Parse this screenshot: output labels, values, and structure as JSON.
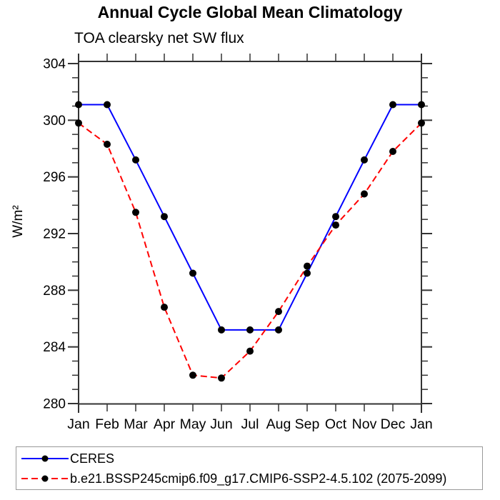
{
  "header": {
    "title": "Annual Cycle Global Mean Climatology",
    "subtitle": "TOA clearsky net SW flux"
  },
  "legend": {
    "entries": [
      {
        "label": "CERES",
        "color": "#0000ff",
        "style": "solid",
        "marker_color": "#000000"
      },
      {
        "label": "b.e21.BSSP245cmip6.f09_g17.CMIP6-SSP2-4.5.102 (2075-2099)",
        "color": "#ff0000",
        "style": "dashed",
        "marker_color": "#000000"
      }
    ]
  },
  "chart_data": {
    "type": "line",
    "title": "Annual Cycle Global Mean Climatology",
    "subtitle": "TOA clearsky net SW flux",
    "xlabel": "",
    "ylabel": "W/m²",
    "ylim": [
      280,
      304
    ],
    "y_major_ticks": [
      280,
      284,
      288,
      292,
      296,
      300,
      304
    ],
    "y_minor_tick_interval": 1,
    "grid": false,
    "legend_position": "bottom",
    "categories": [
      "Jan",
      "Feb",
      "Mar",
      "Apr",
      "May",
      "Jun",
      "Jul",
      "Aug",
      "Sep",
      "Oct",
      "Nov",
      "Dec",
      "Jan"
    ],
    "series": [
      {
        "name": "CERES",
        "color": "#0000ff",
        "line_style": "solid",
        "marker": "circle",
        "marker_color": "#000000",
        "values": [
          301.1,
          301.1,
          297.2,
          293.2,
          289.2,
          285.2,
          285.2,
          285.2,
          289.2,
          293.2,
          297.2,
          301.1,
          301.1
        ]
      },
      {
        "name": "b.e21.BSSP245cmip6.f09_g17.CMIP6-SSP2-4.5.102 (2075-2099)",
        "color": "#ff0000",
        "line_style": "dashed",
        "marker": "circle",
        "marker_color": "#000000",
        "values": [
          299.8,
          298.3,
          293.5,
          286.8,
          282.0,
          281.8,
          283.7,
          286.5,
          289.7,
          292.6,
          294.8,
          297.8,
          299.8
        ]
      }
    ]
  }
}
